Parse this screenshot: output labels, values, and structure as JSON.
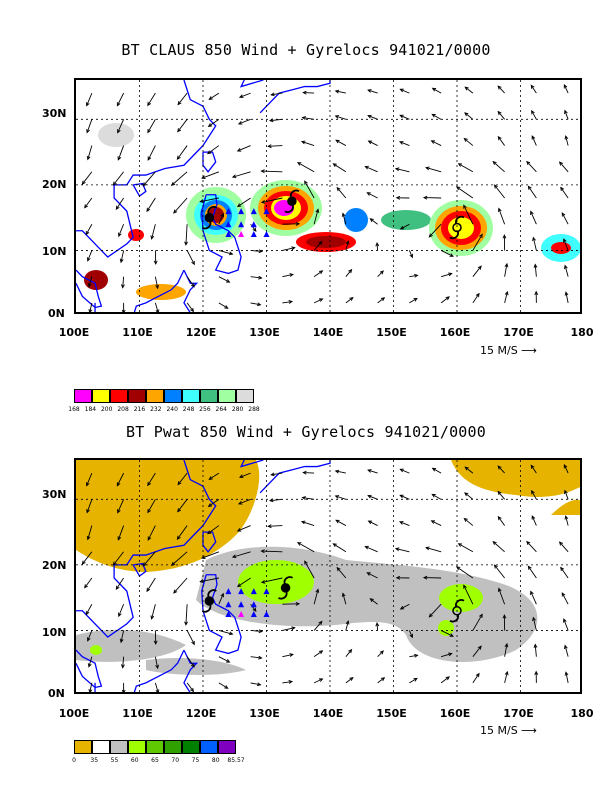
{
  "panel1": {
    "title": "BT CLAUS 850 Wind + Gyrelocs 941021/0000",
    "scale_label": "15 M/S",
    "colorbar": {
      "colors": [
        "#ff00ff",
        "#ffff00",
        "#ff0000",
        "#a00000",
        "#ffa500",
        "#0080ff",
        "#40ffff",
        "#40c080",
        "#a0ffa0",
        "#dcdcdc"
      ],
      "labels": [
        "168",
        "184",
        "200",
        "208",
        "216",
        "232",
        "240",
        "248",
        "256",
        "264",
        "280",
        "288"
      ]
    }
  },
  "panel2": {
    "title": "BT Pwat 850 Wind + Gyrelocs 941021/0000",
    "scale_label": "15 M/S",
    "colorbar": {
      "colors": [
        "#e6b400",
        "#ffffff",
        "#c0c0c0",
        "#a0ff00",
        "#60c800",
        "#30a000",
        "#008000",
        "#0060ff",
        "#8000c0"
      ],
      "labels": [
        "0",
        "35",
        "55",
        "60",
        "65",
        "70",
        "75",
        "80",
        "85.57"
      ]
    }
  },
  "axes": {
    "lat_labels": [
      "30N",
      "20N",
      "10N",
      "0N"
    ],
    "lon_labels": [
      "100E",
      "110E",
      "120E",
      "130E",
      "140E",
      "150E",
      "160E",
      "170E",
      "180"
    ],
    "lon_range": [
      100,
      180
    ],
    "lat_range": [
      0,
      36
    ]
  },
  "colors": {
    "coast": "#0000ff",
    "grid": "#000000"
  },
  "icons": [
    "typhoon-symbol-icon",
    "triangle-marker-icon"
  ]
}
